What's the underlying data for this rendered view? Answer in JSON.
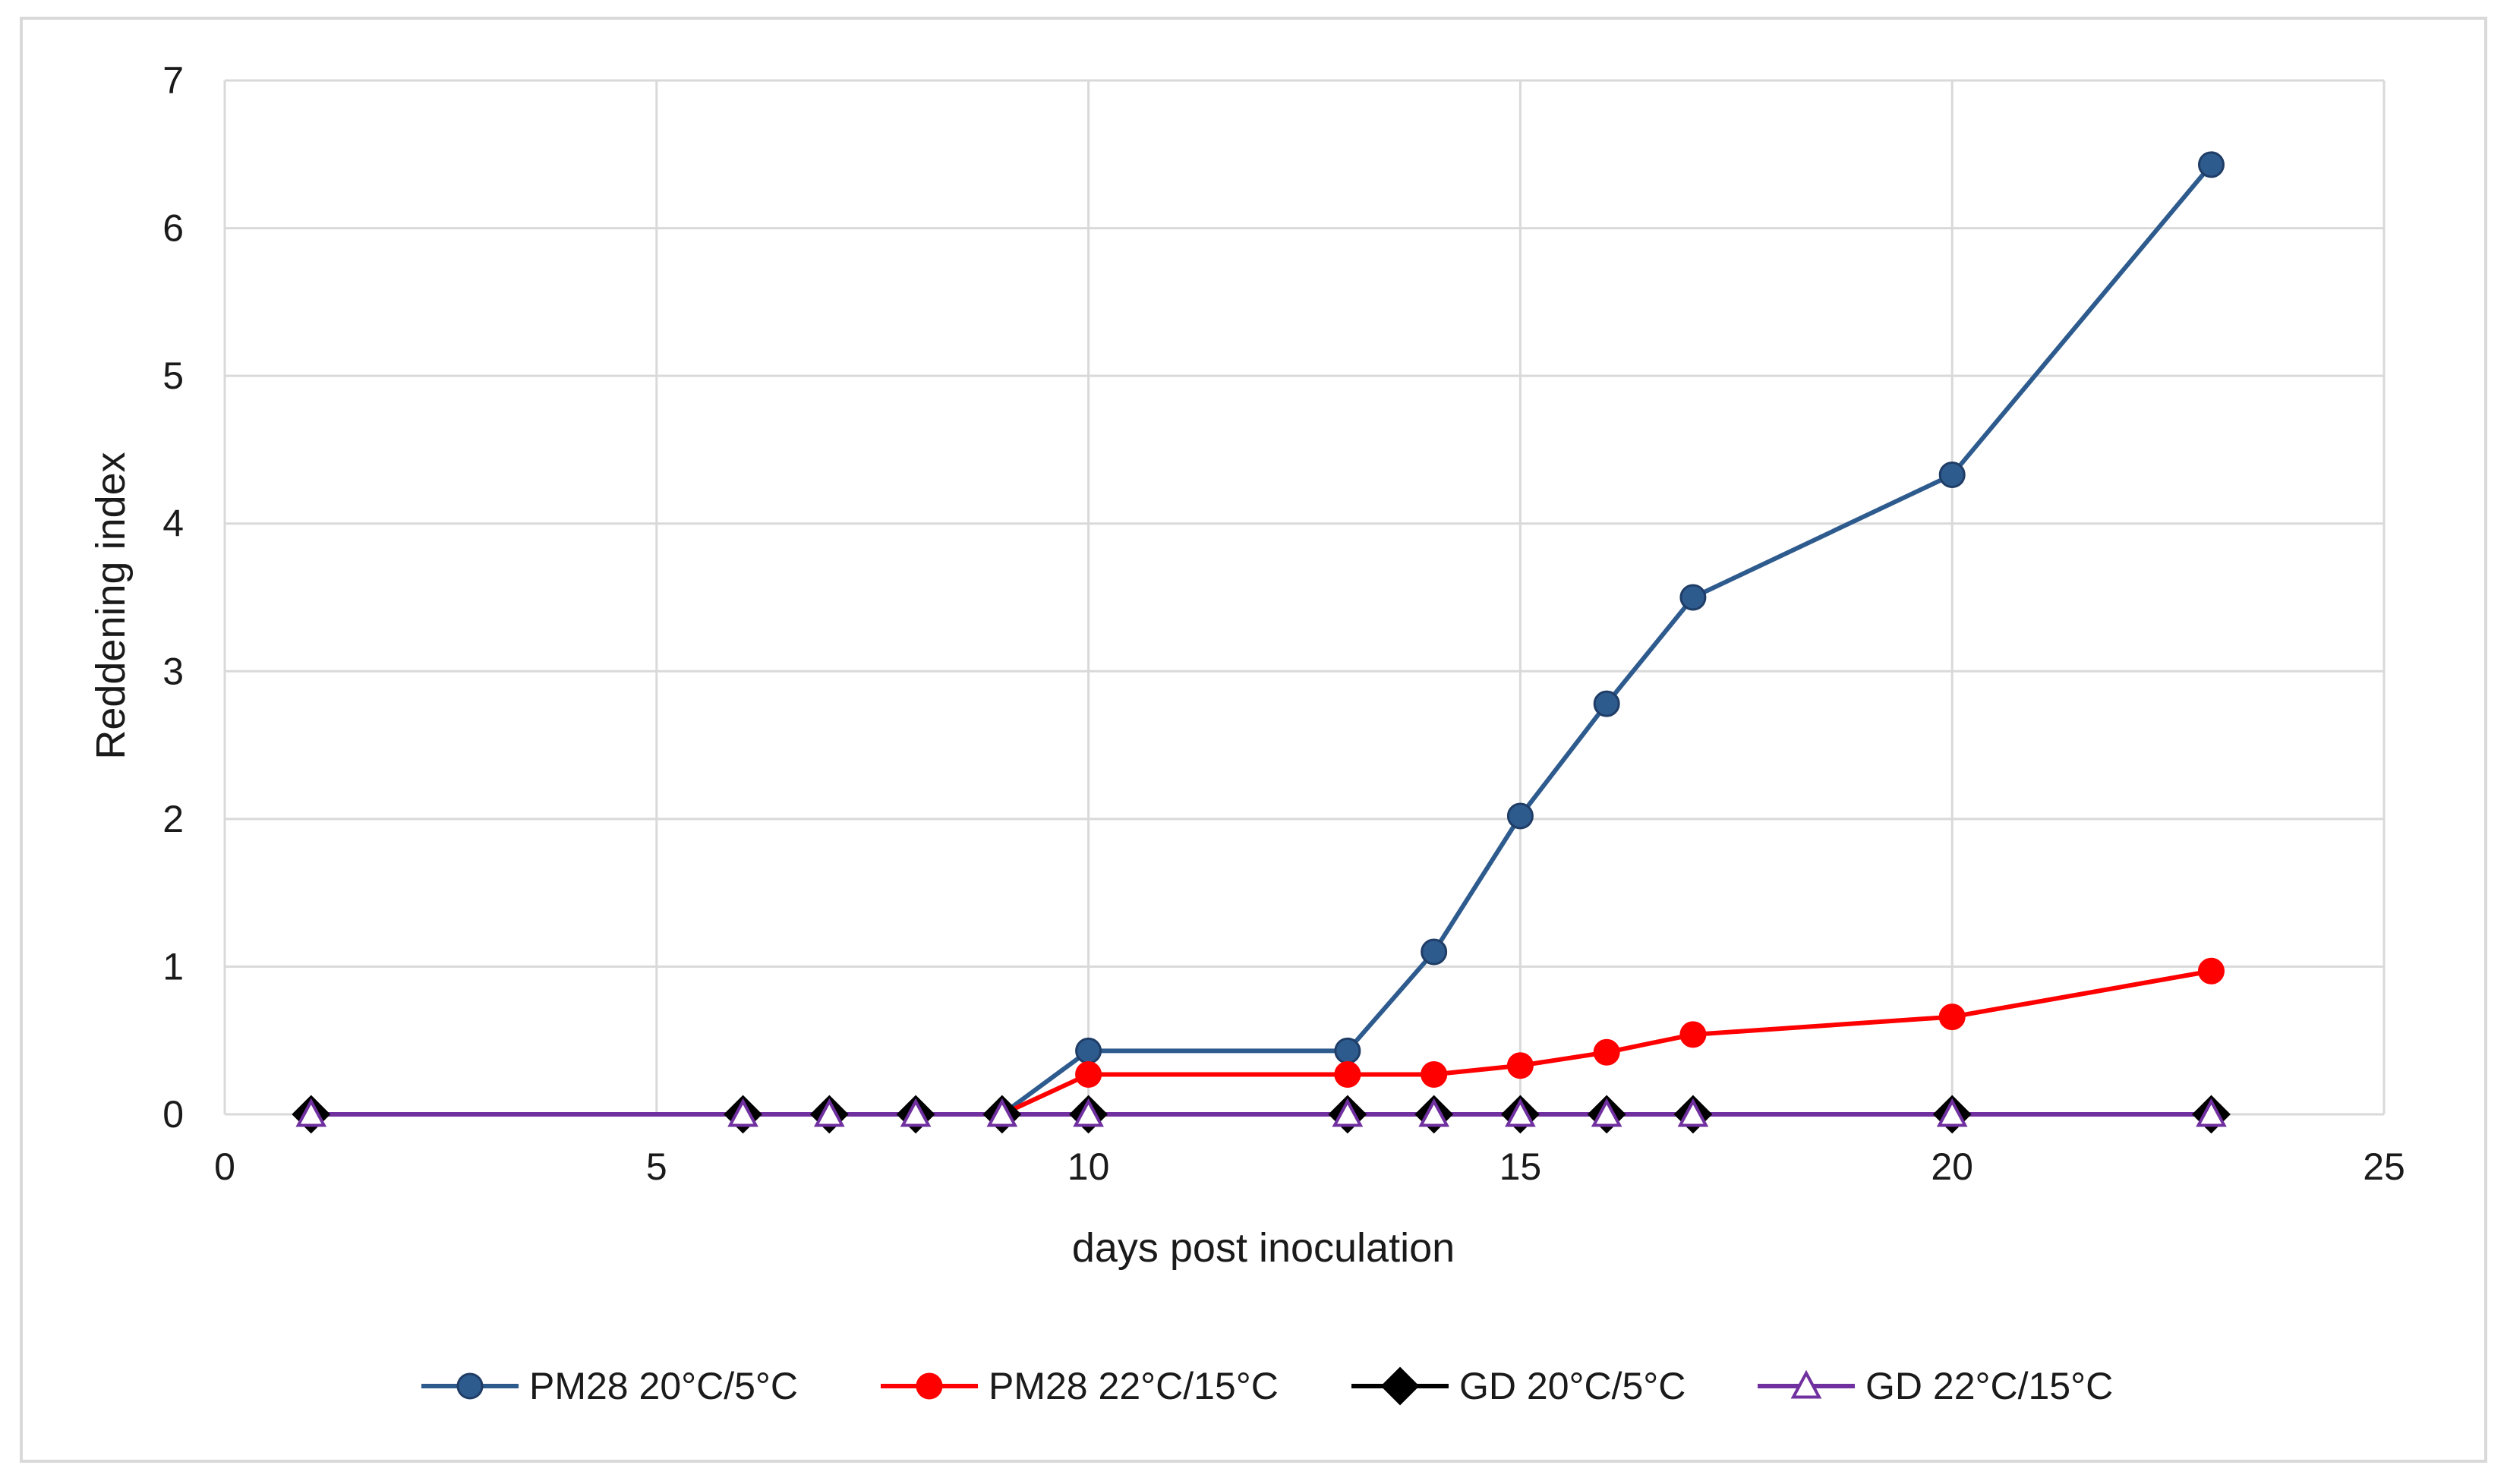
{
  "chart_data": {
    "type": "line",
    "xlabel": "days post inoculation",
    "ylabel": "Reddening index",
    "xlim": [
      0,
      25
    ],
    "ylim": [
      0,
      7
    ],
    "xticks": [
      0,
      5,
      10,
      15,
      20,
      25
    ],
    "yticks": [
      0,
      1,
      2,
      3,
      4,
      5,
      6,
      7
    ],
    "grid": true,
    "legend_position": "bottom",
    "series": [
      {
        "name": "PM28 20°C/5°C",
        "color": "#2e5b8e",
        "marker": "circle",
        "x": [
          1,
          6,
          7,
          8,
          9,
          10,
          13,
          14,
          15,
          16,
          17,
          20,
          23
        ],
        "y": [
          0,
          0,
          0,
          0,
          0,
          0.43,
          0.43,
          1.1,
          2.02,
          2.78,
          3.5,
          4.33,
          6.43
        ]
      },
      {
        "name": "PM28 22°C/15°C",
        "color": "#ff0000",
        "marker": "circle",
        "x": [
          1,
          6,
          7,
          8,
          9,
          10,
          13,
          14,
          15,
          16,
          17,
          20,
          23
        ],
        "y": [
          0,
          0,
          0,
          0,
          0,
          0.27,
          0.27,
          0.27,
          0.33,
          0.42,
          0.54,
          0.66,
          0.97
        ]
      },
      {
        "name": "GD 20°C/5°C",
        "color": "#000000",
        "marker": "diamond",
        "x": [
          1,
          6,
          7,
          8,
          9,
          10,
          13,
          14,
          15,
          16,
          17,
          20,
          23
        ],
        "y": [
          0,
          0,
          0,
          0,
          0,
          0,
          0,
          0,
          0,
          0,
          0,
          0,
          0
        ]
      },
      {
        "name": "GD 22°C/15°C",
        "color": "#7030a0",
        "marker": "triangle-open",
        "x": [
          1,
          6,
          7,
          8,
          9,
          10,
          13,
          14,
          15,
          16,
          17,
          20,
          23
        ],
        "y": [
          0,
          0,
          0,
          0,
          0,
          0,
          0,
          0,
          0,
          0,
          0,
          0,
          0
        ]
      }
    ]
  }
}
